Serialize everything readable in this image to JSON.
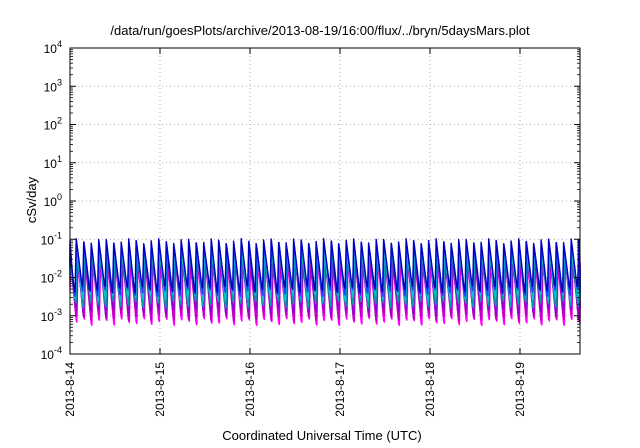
{
  "chart_data": {
    "type": "line",
    "title": "/data/run/goesPlots/archive/2013-08-19/16:00/flux/../bryn/5daysMars.plot",
    "xlabel": "Coordinated Universal Time (UTC)",
    "ylabel": "cSv/day",
    "y_scale": "log",
    "ylim": [
      0.0001,
      10000
    ],
    "y_ticks": [
      {
        "value": 0.0001,
        "base": "10",
        "exp": "-4"
      },
      {
        "value": 0.001,
        "base": "10",
        "exp": "-3"
      },
      {
        "value": 0.01,
        "base": "10",
        "exp": "-2"
      },
      {
        "value": 0.1,
        "base": "10",
        "exp": "-1"
      },
      {
        "value": 1,
        "base": "10",
        "exp": "0"
      },
      {
        "value": 10,
        "base": "10",
        "exp": "1"
      },
      {
        "value": 100,
        "base": "10",
        "exp": "2"
      },
      {
        "value": 1000,
        "base": "10",
        "exp": "3"
      },
      {
        "value": 10000,
        "base": "10",
        "exp": "4"
      }
    ],
    "xlim": [
      "2013-08-14 00:00",
      "2013-08-19 16:00"
    ],
    "x_ticks": [
      {
        "value": "2013-08-14",
        "label": "2013-8-14"
      },
      {
        "value": "2013-08-15",
        "label": "2013-8-15"
      },
      {
        "value": "2013-08-16",
        "label": "2013-8-16"
      },
      {
        "value": "2013-08-17",
        "label": "2013-8-17"
      },
      {
        "value": "2013-08-18",
        "label": "2013-8-18"
      },
      {
        "value": "2013-08-19",
        "label": "2013-8-19"
      }
    ],
    "grid": true,
    "pattern": {
      "period_hours": 2,
      "note": "sawtooth dose-rate profiles repeating every ~2 h"
    },
    "series": [
      {
        "color": "#ff00ff",
        "peak": 0.025,
        "trough": 0.0007
      },
      {
        "color": "#c000c0",
        "peak": 0.03,
        "trough": 0.0009
      },
      {
        "color": "#9400d3",
        "peak": 0.04,
        "trough": 0.0013
      },
      {
        "color": "#00a0a0",
        "peak": 0.05,
        "trough": 0.002
      },
      {
        "color": "#00c8c8",
        "peak": 0.06,
        "trough": 0.003
      },
      {
        "color": "#2040ff",
        "peak": 0.08,
        "trough": 0.004
      },
      {
        "color": "#0000c0",
        "peak": 0.09,
        "trough": 0.005
      }
    ]
  }
}
